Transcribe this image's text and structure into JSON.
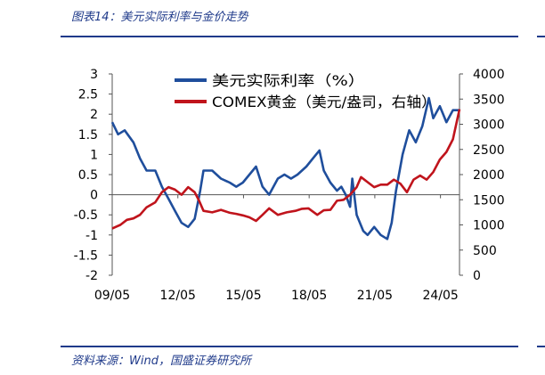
{
  "figure": {
    "title": "图表14：美元实际利率与金价走势",
    "source": "资料来源：Wind，国盛证券研究所"
  },
  "chart_data": {
    "type": "line",
    "x_ticks": [
      "09/05",
      "12/05",
      "15/05",
      "18/05",
      "21/05",
      "24/05"
    ],
    "x_tick_positions": [
      2009.33,
      2012.33,
      2015.33,
      2018.33,
      2021.33,
      2024.33
    ],
    "x_range": [
      2009.33,
      2025.2
    ],
    "y_left": {
      "range": [
        -2,
        3
      ],
      "ticks": [
        "3",
        "2.5",
        "2",
        "1.5",
        "1",
        "0.5",
        "0",
        "-0.5",
        "-1",
        "-1.5",
        "-2"
      ],
      "tick_values": [
        3,
        2.5,
        2,
        1.5,
        1,
        0.5,
        0,
        -0.5,
        -1,
        -1.5,
        -2
      ]
    },
    "y_right": {
      "range": [
        0,
        4000
      ],
      "ticks": [
        "4000",
        "3500",
        "3000",
        "2500",
        "2000",
        "1500",
        "1000",
        "500",
        "0"
      ],
      "tick_values": [
        4000,
        3500,
        3000,
        2500,
        2000,
        1500,
        1000,
        500,
        0
      ]
    },
    "legend_position": "top-center",
    "series": [
      {
        "name": "美元实际利率（%）",
        "axis": "left",
        "color": "#1f4e9c",
        "x": [
          2009.33,
          2009.6,
          2009.9,
          2010.3,
          2010.6,
          2010.9,
          2011.3,
          2011.6,
          2011.9,
          2012.2,
          2012.5,
          2012.8,
          2013.1,
          2013.35,
          2013.5,
          2013.9,
          2014.3,
          2014.7,
          2015.0,
          2015.3,
          2015.6,
          2015.9,
          2016.2,
          2016.5,
          2016.9,
          2017.2,
          2017.5,
          2017.8,
          2018.2,
          2018.5,
          2018.8,
          2019.0,
          2019.3,
          2019.6,
          2019.8,
          2020.0,
          2020.2,
          2020.3,
          2020.5,
          2020.8,
          2021.0,
          2021.3,
          2021.6,
          2021.9,
          2022.1,
          2022.3,
          2022.6,
          2022.9,
          2023.2,
          2023.5,
          2023.8,
          2024.0,
          2024.3,
          2024.6,
          2024.9,
          2025.2
        ],
        "y": [
          1.8,
          1.5,
          1.6,
          1.3,
          0.9,
          0.6,
          0.6,
          0.2,
          -0.1,
          -0.4,
          -0.7,
          -0.8,
          -0.6,
          0.1,
          0.6,
          0.6,
          0.4,
          0.3,
          0.2,
          0.3,
          0.5,
          0.7,
          0.2,
          0.0,
          0.4,
          0.5,
          0.4,
          0.5,
          0.7,
          0.9,
          1.1,
          0.6,
          0.3,
          0.1,
          0.2,
          0.0,
          -0.3,
          0.4,
          -0.5,
          -0.9,
          -1.0,
          -0.8,
          -1.0,
          -1.1,
          -0.7,
          0.1,
          1.0,
          1.6,
          1.3,
          1.7,
          2.4,
          1.9,
          2.2,
          1.8,
          2.1,
          2.1
        ]
      },
      {
        "name": "COMEX黄金（美元/盎司，右轴）",
        "axis": "right",
        "color": "#c0141c",
        "x": [
          2009.33,
          2009.7,
          2010.0,
          2010.3,
          2010.6,
          2010.9,
          2011.3,
          2011.6,
          2011.9,
          2012.2,
          2012.5,
          2012.8,
          2013.1,
          2013.3,
          2013.5,
          2013.9,
          2014.3,
          2014.7,
          2015.0,
          2015.3,
          2015.6,
          2015.9,
          2016.2,
          2016.5,
          2016.9,
          2017.3,
          2017.7,
          2018.0,
          2018.3,
          2018.7,
          2019.0,
          2019.3,
          2019.6,
          2019.9,
          2020.2,
          2020.5,
          2020.7,
          2021.0,
          2021.3,
          2021.6,
          2021.9,
          2022.2,
          2022.5,
          2022.8,
          2023.1,
          2023.4,
          2023.7,
          2024.0,
          2024.3,
          2024.6,
          2024.9,
          2025.2
        ],
        "y": [
          930,
          1000,
          1100,
          1130,
          1200,
          1350,
          1450,
          1650,
          1750,
          1700,
          1600,
          1750,
          1650,
          1480,
          1280,
          1250,
          1300,
          1240,
          1220,
          1190,
          1150,
          1080,
          1200,
          1330,
          1200,
          1250,
          1280,
          1320,
          1330,
          1200,
          1290,
          1300,
          1480,
          1500,
          1600,
          1750,
          1950,
          1850,
          1750,
          1800,
          1800,
          1900,
          1820,
          1650,
          1900,
          1980,
          1900,
          2050,
          2300,
          2450,
          2700,
          3300
        ]
      }
    ]
  }
}
